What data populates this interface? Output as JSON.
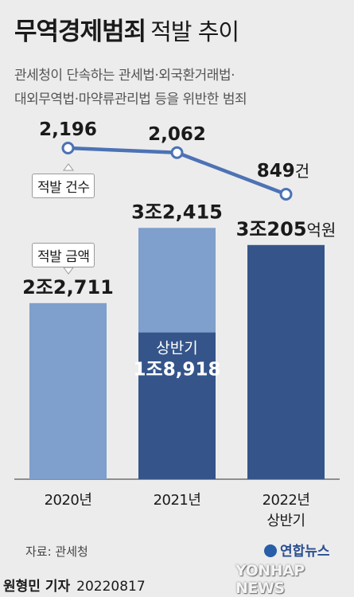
{
  "header": {
    "title": "무역경제범죄",
    "subtitle": "적발 추이",
    "desc_line1": "관세청이 단속하는 관세법·외국환거래법·",
    "desc_line2": "대외무역법·마약류관리법 등을 위반한 범죄"
  },
  "chart_data": {
    "type": "bar",
    "categories": [
      "2020년",
      "2021년",
      "2022년|상반기"
    ],
    "count_series": {
      "name": "적발 건수",
      "values": [
        2196,
        2062,
        849
      ],
      "labels": [
        "2,196",
        "2,062",
        "849"
      ],
      "unit": "건"
    },
    "amount_series": {
      "name": "적발 금액",
      "values": [
        22711,
        32415,
        30205
      ],
      "labels_prefix": [
        "2조",
        "3조",
        "3조"
      ],
      "labels_main": [
        "2,711",
        "2,415",
        "205"
      ],
      "unit": "억원"
    },
    "first_half_2021": {
      "label": "상반기",
      "value": 18918,
      "display": "1조8,918"
    },
    "colors": {
      "line": "#4d72b5",
      "bar_light": "#7f9fcc",
      "bar_dark": "#35558a"
    }
  },
  "footer": {
    "source": "자료: 관세청",
    "byline": "원형민 기자",
    "date": "20220817",
    "logo_text": "연합뉴스",
    "logo_english": "YONHAP NEWS"
  }
}
